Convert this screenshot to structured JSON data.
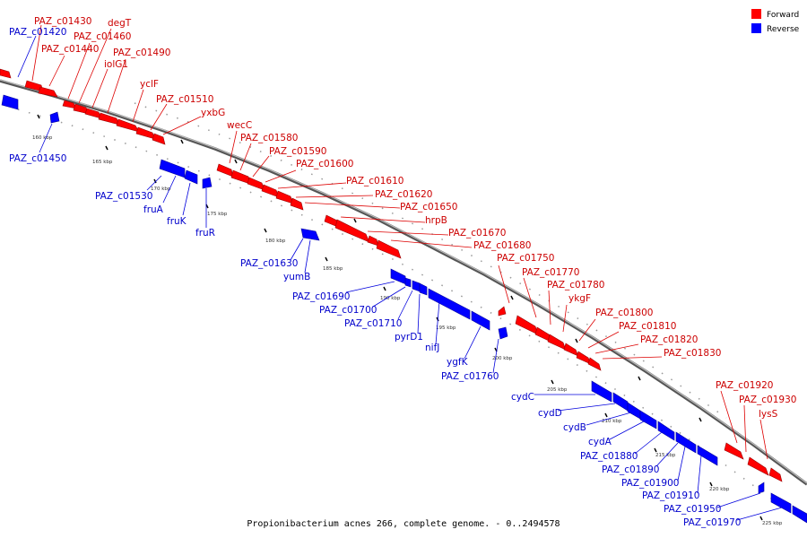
{
  "caption": "Propionibacterium acnes 266, complete genome. - 0..2494578",
  "legend": [
    {
      "label": "Forward",
      "color": "#ff0000"
    },
    {
      "label": "Reverse",
      "color": "#0000ff"
    }
  ],
  "colors": {
    "forward": "#ff0000",
    "reverse": "#0000ff",
    "forward_label": "#cc0000",
    "reverse_label": "#0000cc"
  },
  "ticks": [
    "160 kbp",
    "165 kbp",
    "170 kbp",
    "175 kbp",
    "180 kbp",
    "185 kbp",
    "190 kbp",
    "195 kbp",
    "200 kbp",
    "205 kbp",
    "210 kbp",
    "215 kbp",
    "220 kbp",
    "225 kbp"
  ],
  "forward_genes": [
    "PAZ_c01430",
    "degT",
    "PAZ_c01460",
    "PAZ_c01440",
    "PAZ_c01490",
    "iolG1",
    "yclF",
    "PAZ_c01510",
    "yxbG",
    "wecC",
    "PAZ_c01580",
    "PAZ_c01590",
    "PAZ_c01600",
    "PAZ_c01610",
    "PAZ_c01620",
    "PAZ_c01650",
    "hrpB",
    "PAZ_c01670",
    "PAZ_c01680",
    "PAZ_c01750",
    "PAZ_c01770",
    "PAZ_c01780",
    "ykgF",
    "PAZ_c01800",
    "PAZ_c01810",
    "PAZ_c01820",
    "PAZ_c01830",
    "PAZ_c01920",
    "PAZ_c01930",
    "lysS"
  ],
  "reverse_genes": [
    "PAZ_c01420",
    "PAZ_c01450",
    "PAZ_c01530",
    "fruA",
    "fruK",
    "fruR",
    "PAZ_c01630",
    "yumB",
    "PAZ_c01690",
    "PAZ_c01700",
    "PAZ_c01710",
    "pyrD1",
    "nifJ",
    "ygfK",
    "PAZ_c01760",
    "cydC",
    "cydD",
    "cydB",
    "cydA",
    "PAZ_c01880",
    "PAZ_c01890",
    "PAZ_c01900",
    "PAZ_c01910",
    "PAZ_c01950",
    "PAZ_c01970"
  ]
}
